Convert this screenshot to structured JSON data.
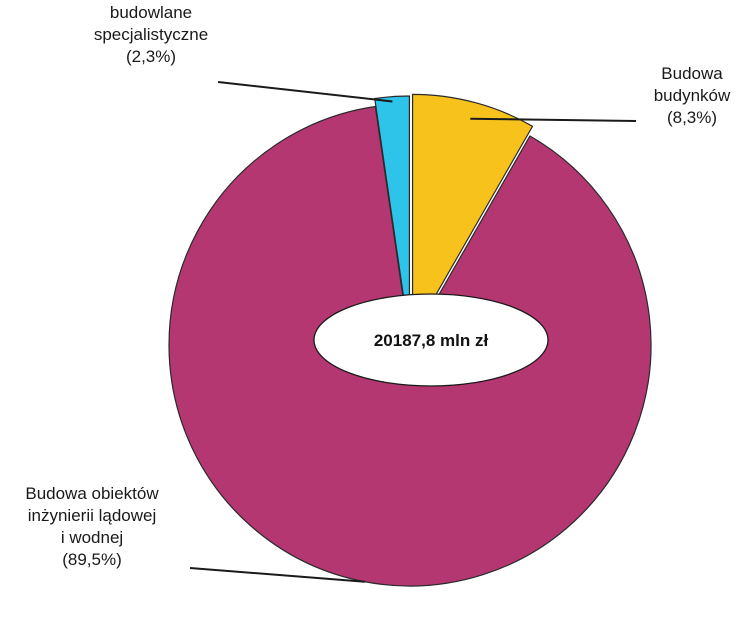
{
  "chart_data": {
    "type": "pie",
    "title": "",
    "center_label": "20187,8 mln zł",
    "slices": [
      {
        "name": "Budowa budynków",
        "percent": 8.3,
        "percent_label": "(8,3%)",
        "label_lines": [
          "Budowa",
          "budynków",
          "(8,3%)"
        ],
        "color": "#f7c21c"
      },
      {
        "name": "Budowa obiektów inżynierii lądowej i wodnej",
        "percent": 89.5,
        "percent_label": "(89,5%)",
        "label_lines": [
          "Budowa obiektów",
          "inżynierii lądowej",
          "i wodnej",
          "(89,5%)"
        ],
        "color": "#b43772"
      },
      {
        "name": "Roboty budowlane specjalistyczne",
        "percent": 2.3,
        "percent_label": "(2,3%)",
        "label_lines": [
          "Roboty",
          "budowlane",
          "specjalistyczne",
          "(2,3%)"
        ],
        "color": "#2ec3e8"
      }
    ],
    "start_angle": "12 o'clock",
    "direction": "clockwise",
    "legend": "none",
    "labels": "outside with leader lines"
  }
}
